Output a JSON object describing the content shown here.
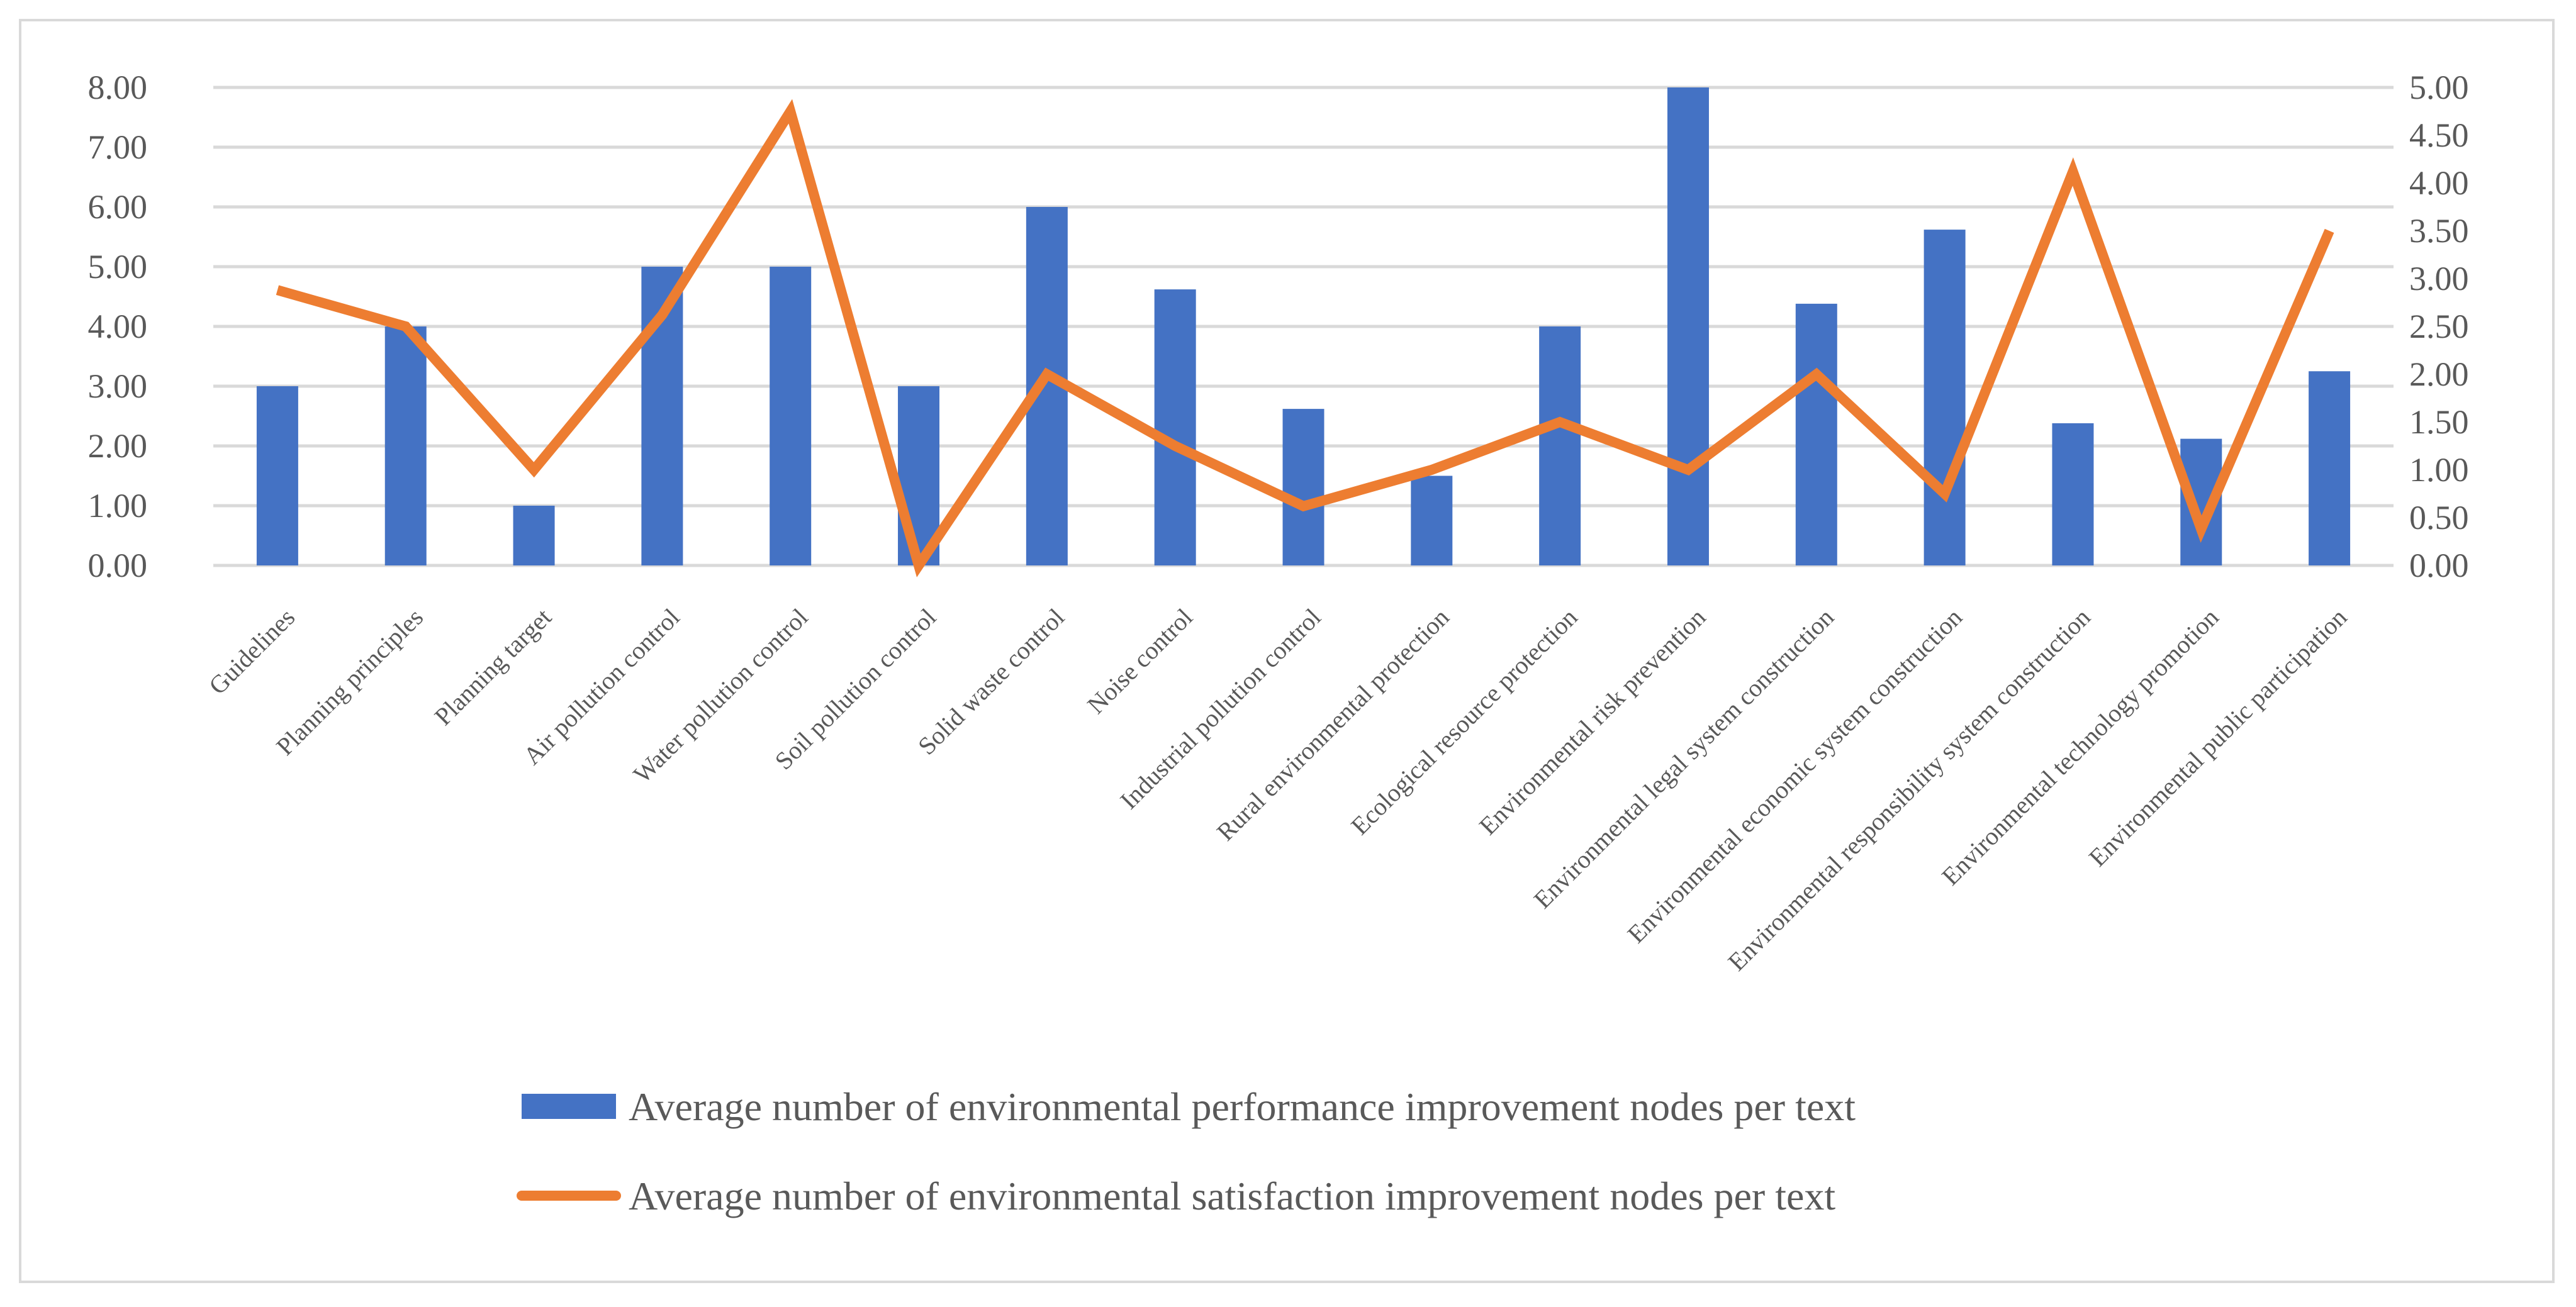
{
  "chart_data": {
    "type": "bar",
    "title": "",
    "categories": [
      "Guidelines",
      "Planning principles",
      "Planning target",
      "Air pollution control",
      "Water pollution control",
      "Soil pollution control",
      "Solid waste control",
      "Noise control",
      "Industrial pollution control",
      "Rural environmental protection",
      "Ecological resource protection",
      "Environmental risk prevention",
      "Environmental legal system construction",
      "Environmental economic system construction",
      "Environmental responsibility system construction",
      "Environmental technology promotion",
      "Environmental public participation"
    ],
    "series": [
      {
        "name": "Average number of environmental performance improvement nodes per text",
        "type": "bar",
        "axis": "left",
        "color": "#4472c4",
        "values": [
          3.0,
          4.0,
          1.0,
          5.0,
          5.0,
          3.0,
          6.0,
          4.62,
          2.62,
          1.5,
          4.0,
          8.0,
          4.38,
          5.62,
          2.38,
          2.12,
          3.25
        ]
      },
      {
        "name": "Average number of environmental satisfaction improvement nodes per text",
        "type": "line",
        "axis": "right",
        "color": "#ed7d31",
        "values": [
          2.88,
          2.5,
          1.0,
          2.62,
          4.75,
          0.0,
          2.0,
          1.25,
          0.62,
          1.0,
          1.5,
          1.0,
          2.0,
          0.75,
          4.12,
          0.38,
          3.5
        ]
      }
    ],
    "ylim_left": [
      0,
      8
    ],
    "ylim_right": [
      0,
      5
    ],
    "yticks_left": [
      "0.00",
      "1.00",
      "2.00",
      "3.00",
      "4.00",
      "5.00",
      "6.00",
      "7.00",
      "8.00"
    ],
    "yticks_right": [
      "0.00",
      "0.50",
      "1.00",
      "1.50",
      "2.00",
      "2.50",
      "3.00",
      "3.50",
      "4.00",
      "4.50",
      "5.00"
    ],
    "xlabel": "",
    "ylabel": "",
    "grid": true,
    "legend_position": "bottom"
  }
}
